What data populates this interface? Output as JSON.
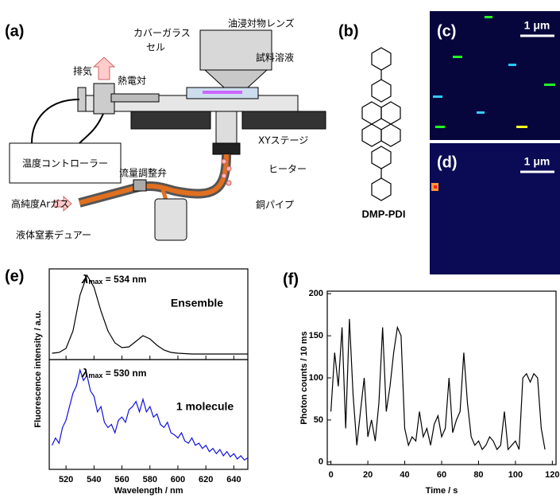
{
  "panel_labels": [
    "(a)",
    "(b)",
    "(c)",
    "(d)",
    "(e)",
    "(f)"
  ],
  "diagram": {
    "labels": [
      "油浸対物レンズ",
      "カバーガラス",
      "セル",
      "試料溶液",
      "排気",
      "熱電対",
      "XYステージ",
      "温度コントローラー",
      "流量調整弁",
      "ヒーター",
      "高純度Arガス",
      "銅パイプ",
      "液体窒素デュアー"
    ]
  },
  "structure": {
    "name": "DMP-PDI"
  },
  "images": [
    {
      "scale_label": "1 μm"
    },
    {
      "scale_label": "1 μm"
    }
  ],
  "chart_data": [
    {
      "type": "line",
      "x": [
        510,
        515,
        520,
        525,
        530,
        535,
        540,
        545,
        550,
        555,
        560,
        565,
        570,
        575,
        580,
        585,
        590,
        595,
        600,
        605,
        610,
        615,
        620,
        625,
        630,
        635,
        640,
        645,
        650
      ],
      "series": [
        {
          "name": "Ensemble",
          "color": "#000000",
          "values": [
            0.02,
            0.03,
            0.08,
            0.3,
            0.75,
            1.0,
            0.85,
            0.55,
            0.3,
            0.15,
            0.09,
            0.1,
            0.17,
            0.24,
            0.2,
            0.12,
            0.06,
            0.03,
            0.02,
            0.015,
            0.01,
            0.01,
            0.01,
            0.01,
            0.01,
            0.01,
            0.01,
            0.01,
            0.01
          ]
        }
      ],
      "annotation": {
        "symbol": "λ",
        "sub": "max",
        "text": " = 534 nm"
      },
      "xlim": [
        508,
        650
      ],
      "ylim": [
        -0.06,
        1.08
      ],
      "xticks": [
        520,
        540,
        560,
        580,
        600,
        620,
        640
      ]
    },
    {
      "type": "line",
      "x": [
        510,
        512.5,
        515,
        517.5,
        520,
        522.5,
        525,
        527.5,
        530,
        532.5,
        535,
        537.5,
        540,
        542.5,
        545,
        547.5,
        550,
        552.5,
        555,
        557.5,
        560,
        562.5,
        565,
        567.5,
        570,
        572.5,
        575,
        577.5,
        580,
        582.5,
        585,
        587.5,
        590,
        592.5,
        595,
        597.5,
        600,
        602.5,
        605,
        607.5,
        610,
        612.5,
        615,
        617.5,
        620,
        622.5,
        625,
        627.5,
        630,
        632.5,
        635,
        637.5,
        640,
        642.5,
        645,
        647.5,
        650
      ],
      "series": [
        {
          "name": "1 molecule",
          "color": "#1010e0",
          "values": [
            0.18,
            0.25,
            0.2,
            0.35,
            0.42,
            0.55,
            0.68,
            0.75,
            0.9,
            0.8,
            0.85,
            0.7,
            0.65,
            0.5,
            0.55,
            0.4,
            0.35,
            0.38,
            0.3,
            0.42,
            0.45,
            0.4,
            0.52,
            0.55,
            0.6,
            0.5,
            0.62,
            0.5,
            0.55,
            0.45,
            0.48,
            0.38,
            0.35,
            0.4,
            0.3,
            0.28,
            0.25,
            0.3,
            0.22,
            0.2,
            0.25,
            0.18,
            0.2,
            0.15,
            0.18,
            0.12,
            0.15,
            0.1,
            0.14,
            0.08,
            0.12,
            0.07,
            0.1,
            0.05,
            0.08,
            0.04,
            0.06
          ]
        }
      ],
      "annotation": {
        "symbol": "λ",
        "sub": "max",
        "text": " = 530 nm"
      },
      "xlabel": "Wavelength / nm",
      "ylabel": "Fluorescence intensity / a.u.",
      "xlim": [
        508,
        650
      ],
      "ylim": [
        -0.05,
        1.0
      ],
      "xticks": [
        520,
        540,
        560,
        580,
        600,
        620,
        640
      ]
    },
    {
      "type": "line",
      "x": [
        0,
        2,
        4,
        6,
        8,
        10,
        12,
        14,
        16,
        18,
        20,
        22,
        24,
        26,
        28,
        30,
        32,
        34,
        36,
        38,
        40,
        42,
        44,
        46,
        48,
        50,
        52,
        54,
        56,
        58,
        60,
        62,
        64,
        66,
        68,
        70,
        72,
        74,
        76,
        78,
        80,
        82,
        84,
        86,
        88,
        90,
        92,
        94,
        96,
        98,
        100,
        102,
        104,
        106,
        108,
        110,
        112,
        114,
        116
      ],
      "series": [
        {
          "color": "#000000",
          "values": [
            60,
            130,
            90,
            160,
            40,
            170,
            80,
            20,
            60,
            100,
            30,
            50,
            25,
            70,
            160,
            60,
            90,
            130,
            160,
            150,
            40,
            20,
            30,
            25,
            60,
            30,
            40,
            20,
            45,
            55,
            30,
            40,
            100,
            35,
            50,
            60,
            130,
            70,
            30,
            20,
            25,
            15,
            20,
            30,
            25,
            15,
            20,
            60,
            15,
            20,
            25,
            15,
            100,
            105,
            95,
            105,
            100,
            40,
            15
          ]
        }
      ],
      "xlabel": "Time / s",
      "ylabel": "Photon counts / 10 ms",
      "xlim": [
        -2,
        122
      ],
      "ylim": [
        -3,
        203
      ],
      "xticks": [
        0,
        20,
        40,
        60,
        80,
        100,
        120
      ],
      "yticks": [
        0,
        50,
        100,
        150,
        200
      ]
    }
  ]
}
